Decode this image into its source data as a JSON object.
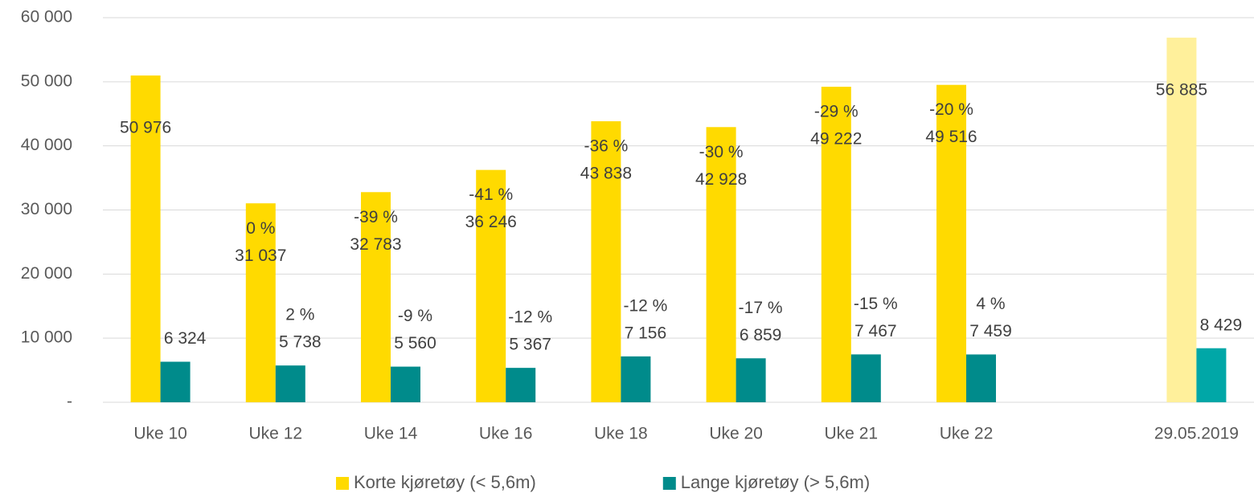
{
  "chart_data": {
    "type": "bar",
    "categories": [
      "Uke 10",
      "Uke 12",
      "Uke 14",
      "Uke 16",
      "Uke 18",
      "Uke 20",
      "Uke 21",
      "Uke 22",
      null,
      "29.05.2019"
    ],
    "series": [
      {
        "name": "Korte kjøretøy (< 5,6m)",
        "color": "#FFDA00",
        "colors": [
          "#FFDA00",
          "#FFDA00",
          "#FFDA00",
          "#FFDA00",
          "#FFDA00",
          "#FFDA00",
          "#FFDA00",
          "#FFDA00",
          "#FFDA00",
          "#FFF09B"
        ],
        "values": [
          50976,
          31037,
          32783,
          36246,
          43838,
          42928,
          49222,
          49516,
          null,
          56885
        ],
        "value_labels": [
          "50 976",
          "31 037",
          "32 783",
          "36 246",
          "43 838",
          "42 928",
          "49 222",
          "49 516",
          null,
          "56 885"
        ],
        "change_labels": [
          null,
          "0 %",
          "-39 %",
          "-41 %",
          "-36 %",
          "-30 %",
          "-29 %",
          "-20 %",
          null,
          null
        ]
      },
      {
        "name": "Lange kjøretøy (> 5,6m)",
        "color": "#008B8B",
        "colors": [
          "#008B8B",
          "#008B8B",
          "#008B8B",
          "#008B8B",
          "#008B8B",
          "#008B8B",
          "#008B8B",
          "#008B8B",
          "#008B8B",
          "#00A7A7"
        ],
        "values": [
          6324,
          5738,
          5560,
          5367,
          7156,
          6859,
          7467,
          7459,
          null,
          8429
        ],
        "value_labels": [
          "6 324",
          "5 738",
          "5 560",
          "5 367",
          "7 156",
          "6 859",
          "7 467",
          "7 459",
          null,
          "8 429"
        ],
        "change_labels": [
          null,
          "2 %",
          "-9 %",
          "-12 %",
          "-12 %",
          "-17 %",
          "-15 %",
          "4 %",
          null,
          null
        ]
      }
    ],
    "ylim": [
      0,
      60000
    ],
    "yticks": [
      {
        "value": 0,
        "label": "-"
      },
      {
        "value": 10000,
        "label": "10 000"
      },
      {
        "value": 20000,
        "label": "20 000"
      },
      {
        "value": 30000,
        "label": "30 000"
      },
      {
        "value": 40000,
        "label": "40 000"
      },
      {
        "value": 50000,
        "label": "50 000"
      },
      {
        "value": 60000,
        "label": "60 000"
      }
    ],
    "grid": true,
    "legend": "bottom"
  }
}
